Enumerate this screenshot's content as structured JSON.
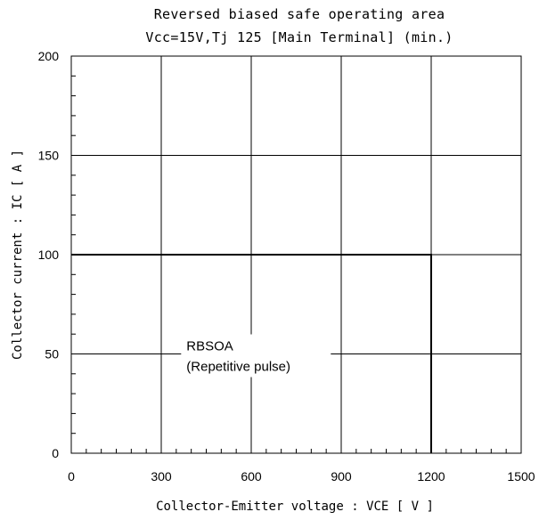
{
  "chart_data": {
    "type": "line",
    "title_line1": "Reversed biased safe operating area",
    "title_line2": "Vcc=15V,Tj  125  [Main Terminal] (min.)",
    "xlabel": "Collector-Emitter voltage : VCE [ V ]",
    "ylabel": "Collector current : IC [ A ]",
    "xlim": [
      0,
      1500
    ],
    "ylim": [
      0,
      200
    ],
    "x_ticks": [
      "0",
      "300",
      "600",
      "900",
      "1200",
      "1500"
    ],
    "y_ticks": [
      "0",
      "50",
      "100",
      "150",
      "200"
    ],
    "grid": true,
    "series": [
      {
        "x": [
          0,
          1200,
          1200
        ],
        "y": [
          100,
          100,
          0
        ]
      }
    ],
    "annotation": {
      "line1": "RBSOA",
      "line2": "(Repetitive pulse)",
      "x": 390,
      "y": 50
    }
  }
}
